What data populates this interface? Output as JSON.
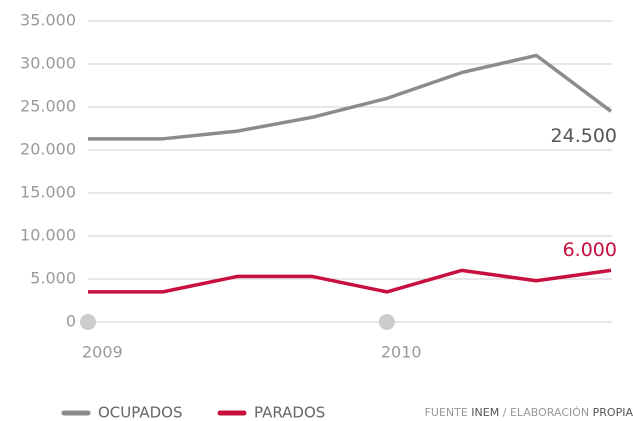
{
  "chart_data": {
    "type": "line",
    "x": [
      2009,
      2009.25,
      2009.5,
      2009.75,
      2010,
      2010.25,
      2010.5,
      2010.75
    ],
    "xlim": [
      2009,
      2010.75
    ],
    "xticks": [
      2009,
      2010
    ],
    "ylim": [
      0,
      35000
    ],
    "yticks": [
      0,
      {
        "value": 5000,
        "label": "5.000"
      },
      {
        "value": 10000,
        "label": "10.000"
      },
      {
        "value": 15000,
        "label": "15.000"
      },
      {
        "value": 20000,
        "label": "20.000"
      },
      {
        "value": 25000,
        "label": "25.000"
      },
      {
        "value": 30000,
        "label": "30.000"
      },
      {
        "value": 35000,
        "label": "35.000"
      }
    ],
    "grid": true,
    "series": [
      {
        "name": "OCUPADOS",
        "color": "#8c8c8c",
        "values": [
          21300,
          21300,
          22200,
          23800,
          26000,
          29000,
          31000,
          24500
        ],
        "value_labels": [
          null,
          null,
          null,
          null,
          null,
          null,
          null,
          "24.500"
        ]
      },
      {
        "name": "PARADOS",
        "color": "#c8103e",
        "values": [
          3500,
          3500,
          5300,
          5300,
          3500,
          6000,
          4800,
          6000
        ],
        "value_labels": [
          null,
          null,
          null,
          null,
          null,
          null,
          null,
          "6.000"
        ]
      }
    ],
    "source_label": "FUENTE",
    "source": "INEM",
    "separator": "/",
    "credit_label": "ELABORACIÓN",
    "credit": "PROPIA"
  }
}
